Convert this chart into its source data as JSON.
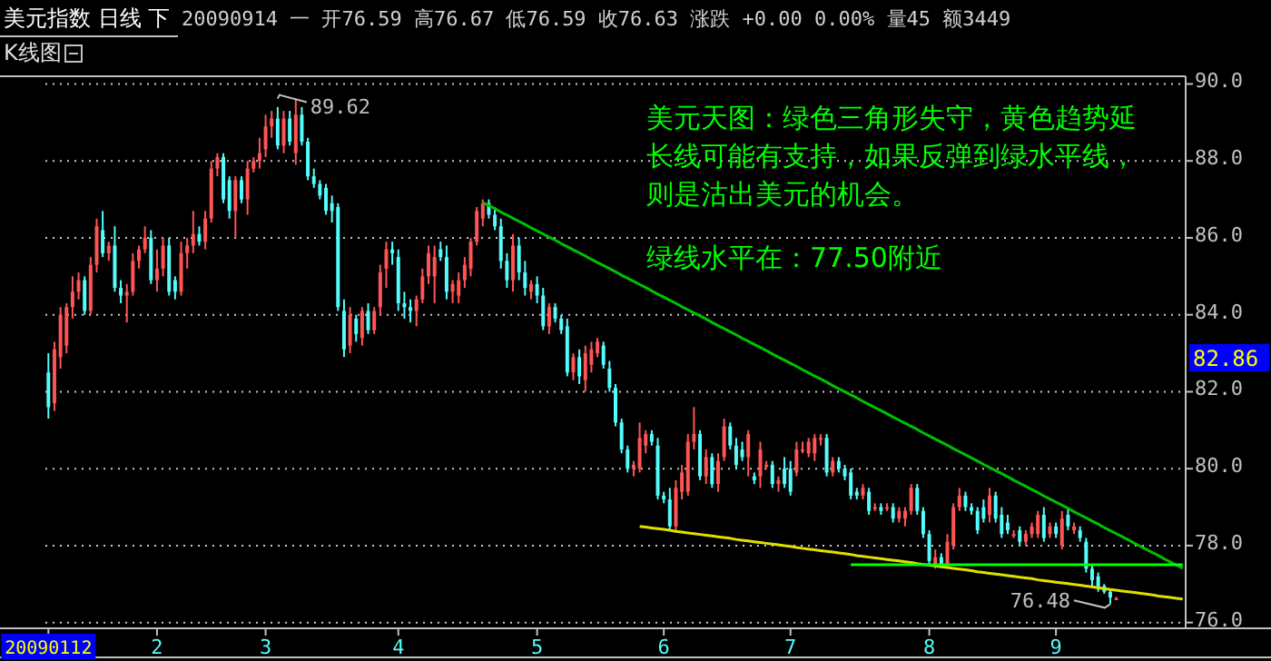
{
  "chart_data": {
    "type": "candlestick",
    "title": "美元指数 日线 下",
    "subtitle": "20090914 一 开76.59 高76.67 低76.59 收76.63 涨跌 +0.00 0.00% 量45 额3449",
    "categories": [
      "20090112",
      null,
      null,
      null,
      null,
      null,
      null,
      null,
      null,
      null,
      null,
      null,
      null,
      null,
      null,
      null,
      null,
      null,
      "2",
      null,
      null,
      null,
      null,
      null,
      null,
      null,
      null,
      null,
      null,
      null,
      null,
      null,
      null,
      null,
      null,
      null,
      "3",
      null,
      null,
      null,
      null,
      null,
      null,
      null,
      null,
      null,
      null,
      null,
      null,
      null,
      null,
      null,
      null,
      null,
      null,
      null,
      null,
      null,
      "4",
      null,
      null,
      null,
      null,
      null,
      null,
      null,
      null,
      null,
      null,
      null,
      null,
      null,
      null,
      null,
      null,
      null,
      null,
      null,
      null,
      null,
      null,
      "5",
      null,
      null,
      null,
      null,
      null,
      null,
      null,
      null,
      null,
      null,
      null,
      null,
      null,
      null,
      null,
      null,
      null,
      null,
      null,
      null,
      "6",
      null,
      null,
      null,
      null,
      null,
      null,
      null,
      null,
      null,
      null,
      null,
      null,
      null,
      null,
      null,
      null,
      null,
      null,
      null,
      null,
      "7",
      null,
      null,
      null,
      null,
      null,
      null,
      null,
      null,
      null,
      null,
      null,
      null,
      null,
      null,
      null,
      null,
      null,
      null,
      null,
      null,
      null,
      null,
      "8",
      null,
      null,
      null,
      null,
      null,
      null,
      null,
      null,
      null,
      null,
      null,
      null,
      null,
      null,
      null,
      null,
      null,
      null,
      null,
      null,
      "9",
      null,
      null,
      null,
      null,
      null,
      null,
      null,
      null,
      null,
      null,
      null,
      null,
      null,
      null,
      null,
      null,
      null,
      null,
      null,
      null,
      null
    ],
    "ohlc": [
      [
        82.5,
        83.0,
        81.3,
        81.6
      ],
      [
        81.7,
        83.3,
        81.5,
        83.1
      ],
      [
        82.9,
        84.2,
        82.6,
        84.0
      ],
      [
        83.2,
        84.3,
        83.0,
        84.2
      ],
      [
        84.2,
        85.0,
        83.9,
        84.6
      ],
      [
        84.6,
        85.1,
        84.4,
        84.9
      ],
      [
        84.9,
        85.0,
        84.0,
        84.1
      ],
      [
        84.1,
        85.5,
        84.0,
        85.3
      ],
      [
        85.3,
        86.5,
        85.1,
        86.3
      ],
      [
        86.2,
        86.7,
        85.5,
        85.6
      ],
      [
        85.6,
        85.9,
        85.4,
        85.8
      ],
      [
        85.8,
        86.3,
        84.6,
        84.7
      ],
      [
        84.7,
        84.9,
        84.3,
        84.5
      ],
      [
        84.5,
        84.8,
        83.8,
        84.6
      ],
      [
        84.6,
        85.6,
        84.5,
        85.4
      ],
      [
        85.4,
        85.8,
        85.2,
        85.7
      ],
      [
        85.7,
        86.3,
        85.6,
        86.0
      ],
      [
        86.0,
        86.2,
        84.8,
        84.9
      ],
      [
        84.9,
        85.7,
        84.6,
        85.2
      ],
      [
        85.2,
        86.0,
        85.0,
        85.8
      ],
      [
        85.8,
        86.0,
        84.5,
        84.6
      ],
      [
        84.9,
        85.0,
        84.4,
        84.6
      ],
      [
        84.6,
        85.9,
        84.5,
        85.6
      ],
      [
        85.6,
        86.0,
        85.2,
        85.8
      ],
      [
        85.8,
        86.7,
        85.6,
        86.1
      ],
      [
        86.1,
        86.3,
        85.8,
        85.9
      ],
      [
        85.9,
        86.7,
        85.7,
        86.5
      ],
      [
        86.5,
        88.0,
        86.4,
        87.8
      ],
      [
        87.8,
        88.2,
        87.6,
        88.1
      ],
      [
        88.1,
        88.2,
        86.9,
        87.0
      ],
      [
        87.5,
        87.6,
        86.5,
        86.7
      ],
      [
        86.7,
        87.6,
        86.0,
        87.5
      ],
      [
        87.5,
        87.6,
        86.9,
        87.0
      ],
      [
        87.0,
        88.0,
        86.6,
        87.8
      ],
      [
        87.8,
        88.1,
        87.7,
        88.0
      ],
      [
        88.0,
        88.6,
        87.8,
        88.2
      ],
      [
        88.3,
        89.2,
        88.1,
        88.9
      ],
      [
        88.9,
        89.3,
        88.6,
        89.1
      ],
      [
        89.1,
        89.4,
        88.3,
        88.4
      ],
      [
        88.4,
        89.3,
        88.2,
        89.1
      ],
      [
        89.1,
        89.3,
        88.4,
        88.5
      ],
      [
        88.2,
        89.62,
        87.9,
        89.2
      ],
      [
        89.2,
        89.4,
        88.4,
        88.5
      ],
      [
        88.5,
        88.6,
        87.5,
        87.6
      ],
      [
        87.6,
        87.8,
        87.3,
        87.4
      ],
      [
        87.4,
        87.5,
        87.0,
        87.1
      ],
      [
        87.3,
        87.4,
        86.6,
        86.7
      ],
      [
        86.9,
        87.1,
        86.4,
        86.7
      ],
      [
        86.8,
        86.9,
        84.1,
        84.2
      ],
      [
        84.1,
        84.4,
        82.9,
        83.1
      ],
      [
        83.2,
        84.2,
        83.0,
        84.0
      ],
      [
        83.9,
        84.0,
        83.3,
        83.5
      ],
      [
        83.4,
        84.2,
        83.2,
        84.1
      ],
      [
        84.1,
        84.3,
        83.5,
        83.6
      ],
      [
        83.6,
        84.2,
        83.5,
        84.1
      ],
      [
        84.2,
        85.3,
        84.0,
        85.1
      ],
      [
        85.2,
        85.9,
        84.7,
        85.7
      ],
      [
        85.7,
        85.9,
        85.3,
        85.6
      ],
      [
        85.5,
        85.7,
        84.1,
        84.3
      ],
      [
        84.3,
        84.6,
        83.9,
        84.2
      ],
      [
        84.2,
        84.4,
        83.8,
        84.1
      ],
      [
        84.1,
        84.5,
        83.7,
        84.4
      ],
      [
        84.4,
        85.2,
        84.3,
        85.0
      ],
      [
        85.0,
        85.8,
        84.8,
        85.6
      ],
      [
        85.0,
        85.8,
        84.3,
        85.5
      ],
      [
        85.7,
        85.9,
        85.4,
        85.5
      ],
      [
        85.5,
        85.8,
        84.4,
        84.6
      ],
      [
        84.6,
        84.9,
        84.3,
        84.8
      ],
      [
        84.5,
        85.1,
        84.3,
        84.9
      ],
      [
        84.9,
        85.5,
        84.7,
        85.3
      ],
      [
        85.2,
        86.0,
        85.0,
        85.9
      ],
      [
        85.9,
        86.8,
        85.8,
        86.7
      ],
      [
        86.5,
        87.0,
        86.3,
        86.9
      ],
      [
        86.9,
        87.0,
        86.5,
        86.6
      ],
      [
        86.6,
        86.8,
        86.2,
        86.3
      ],
      [
        86.3,
        86.5,
        85.2,
        85.4
      ],
      [
        85.4,
        85.6,
        84.7,
        84.9
      ],
      [
        84.9,
        86.1,
        84.6,
        85.8
      ],
      [
        85.8,
        86.0,
        84.9,
        85.1
      ],
      [
        85.1,
        85.4,
        84.5,
        84.7
      ],
      [
        84.6,
        84.9,
        84.4,
        84.8
      ],
      [
        84.8,
        85.0,
        84.3,
        84.5
      ],
      [
        84.5,
        84.7,
        83.6,
        83.7
      ],
      [
        83.7,
        84.3,
        83.5,
        84.2
      ],
      [
        84.2,
        84.3,
        83.8,
        83.9
      ],
      [
        83.9,
        84.0,
        83.5,
        83.6
      ],
      [
        83.7,
        83.9,
        82.4,
        82.5
      ],
      [
        82.5,
        83.0,
        82.3,
        82.9
      ],
      [
        82.9,
        83.1,
        82.2,
        82.4
      ],
      [
        82.3,
        83.2,
        82.0,
        83.0
      ],
      [
        82.7,
        83.3,
        82.5,
        83.1
      ],
      [
        83.0,
        83.4,
        82.9,
        83.3
      ],
      [
        83.2,
        83.3,
        82.6,
        82.7
      ],
      [
        82.6,
        82.8,
        82.0,
        82.1
      ],
      [
        82.1,
        82.2,
        81.1,
        81.2
      ],
      [
        81.2,
        81.3,
        80.4,
        80.5
      ],
      [
        80.5,
        80.6,
        79.9,
        80.0
      ],
      [
        80.0,
        80.2,
        79.8,
        80.1
      ],
      [
        80.0,
        81.2,
        79.9,
        80.8
      ],
      [
        80.6,
        81.0,
        80.4,
        80.9
      ],
      [
        80.9,
        81.0,
        80.6,
        80.7
      ],
      [
        80.6,
        80.8,
        79.2,
        79.3
      ],
      [
        79.3,
        79.4,
        79.1,
        79.2
      ],
      [
        79.2,
        79.5,
        78.4,
        78.5
      ],
      [
        78.5,
        79.7,
        78.4,
        79.5
      ],
      [
        79.4,
        80.1,
        79.2,
        79.9
      ],
      [
        79.4,
        80.9,
        79.3,
        80.7
      ],
      [
        80.7,
        81.6,
        80.5,
        80.9
      ],
      [
        80.9,
        81.0,
        79.7,
        79.8
      ],
      [
        79.8,
        80.5,
        79.6,
        80.3
      ],
      [
        80.3,
        80.4,
        79.5,
        79.6
      ],
      [
        79.6,
        80.4,
        79.4,
        80.2
      ],
      [
        80.3,
        81.3,
        80.2,
        81.1
      ],
      [
        81.1,
        81.2,
        80.5,
        80.6
      ],
      [
        80.6,
        80.8,
        80.0,
        80.1
      ],
      [
        80.5,
        80.7,
        80.2,
        80.3
      ],
      [
        80.3,
        81.0,
        79.8,
        80.9
      ],
      [
        79.8,
        79.9,
        79.6,
        79.7
      ],
      [
        79.8,
        80.7,
        79.5,
        80.5
      ],
      [
        80.1,
        80.2,
        80.0,
        80.1
      ],
      [
        80.1,
        80.2,
        79.5,
        79.6
      ],
      [
        79.6,
        79.8,
        79.4,
        79.7
      ],
      [
        80.0,
        80.3,
        79.5,
        79.6
      ],
      [
        80.0,
        80.2,
        79.3,
        79.4
      ],
      [
        79.9,
        80.7,
        79.8,
        80.5
      ],
      [
        80.5,
        80.7,
        80.4,
        80.5
      ],
      [
        80.4,
        80.8,
        80.3,
        80.7
      ],
      [
        80.4,
        80.9,
        80.2,
        80.8
      ],
      [
        80.8,
        80.9,
        80.6,
        80.8
      ],
      [
        80.8,
        80.9,
        79.8,
        79.9
      ],
      [
        79.9,
        80.3,
        79.8,
        80.2
      ],
      [
        80.2,
        80.3,
        79.9,
        80.0
      ],
      [
        80.0,
        80.1,
        79.7,
        79.8
      ],
      [
        79.9,
        80.0,
        79.2,
        79.3
      ],
      [
        79.4,
        79.5,
        79.2,
        79.3
      ],
      [
        79.3,
        79.6,
        79.2,
        79.5
      ],
      [
        79.4,
        79.5,
        78.8,
        78.9
      ],
      [
        79.0,
        79.1,
        78.9,
        79.0
      ],
      [
        79.0,
        79.1,
        78.8,
        78.9
      ],
      [
        79.0,
        79.1,
        78.9,
        79.0
      ],
      [
        79.0,
        79.1,
        78.6,
        78.7
      ],
      [
        78.7,
        79.0,
        78.6,
        78.9
      ],
      [
        78.7,
        79.0,
        78.5,
        78.9
      ],
      [
        78.9,
        79.6,
        78.8,
        79.5
      ],
      [
        79.5,
        79.6,
        78.8,
        78.9
      ],
      [
        78.9,
        79.0,
        78.2,
        78.3
      ],
      [
        78.3,
        78.4,
        77.5,
        77.6
      ],
      [
        77.5,
        77.9,
        77.4,
        77.7
      ],
      [
        77.7,
        77.8,
        77.5,
        77.5
      ],
      [
        77.5,
        78.3,
        77.4,
        78.1
      ],
      [
        78.0,
        79.1,
        77.9,
        79.0
      ],
      [
        79.0,
        79.5,
        78.9,
        79.3
      ],
      [
        79.3,
        79.4,
        78.9,
        79.0
      ],
      [
        79.0,
        79.1,
        78.8,
        78.9
      ],
      [
        78.9,
        79.0,
        78.3,
        78.4
      ],
      [
        79.0,
        79.2,
        78.6,
        78.7
      ],
      [
        78.8,
        79.5,
        78.6,
        79.3
      ],
      [
        79.3,
        79.4,
        78.6,
        78.7
      ],
      [
        78.8,
        79.0,
        78.2,
        78.3
      ],
      [
        78.6,
        78.8,
        78.3,
        78.4
      ],
      [
        78.3,
        78.4,
        78.2,
        78.3
      ],
      [
        78.4,
        78.5,
        78.0,
        78.1
      ],
      [
        78.1,
        78.4,
        78.0,
        78.3
      ],
      [
        78.3,
        78.6,
        78.2,
        78.5
      ],
      [
        78.3,
        78.9,
        78.2,
        78.8
      ],
      [
        78.8,
        79.0,
        78.1,
        78.2
      ],
      [
        78.3,
        78.6,
        78.2,
        78.5
      ],
      [
        78.5,
        78.6,
        78.2,
        78.3
      ],
      [
        78.0,
        78.9,
        77.9,
        78.7
      ],
      [
        78.8,
        79.0,
        78.4,
        78.5
      ],
      [
        78.4,
        78.6,
        78.3,
        78.5
      ],
      [
        78.4,
        78.5,
        78.1,
        78.2
      ],
      [
        78.1,
        78.2,
        77.3,
        77.4
      ],
      [
        77.4,
        77.5,
        76.9,
        77.1
      ],
      [
        77.2,
        77.3,
        76.8,
        76.9
      ],
      [
        76.95,
        77.0,
        76.75,
        76.8
      ],
      [
        76.8,
        76.85,
        76.48,
        76.65
      ],
      [
        76.59,
        76.67,
        76.59,
        76.63
      ],
      null,
      null,
      null,
      null,
      null,
      null,
      null,
      null,
      null,
      null,
      null
    ],
    "series": [
      {
        "type": "line",
        "color": "#00c000",
        "values": [
          null,
          null,
          null,
          null,
          null,
          null,
          null,
          null,
          null,
          null,
          null,
          null,
          null,
          null,
          null,
          null,
          null,
          null,
          null,
          null,
          null,
          null,
          null,
          null,
          null,
          null,
          null,
          null,
          null,
          null,
          null,
          null,
          null,
          null,
          null,
          null,
          null,
          null,
          null,
          null,
          null,
          null,
          null,
          null,
          null,
          null,
          null,
          null,
          null,
          null,
          null,
          null,
          null,
          null,
          null,
          null,
          null,
          null,
          null,
          null,
          null,
          null,
          null,
          null,
          null,
          null,
          null,
          null,
          null,
          null,
          null,
          null,
          86.92,
          86.84,
          86.76,
          86.67,
          86.59,
          86.51,
          86.43,
          86.35,
          86.26,
          86.18,
          86.1,
          86.02,
          85.94,
          85.85,
          85.77,
          85.69,
          85.61,
          85.53,
          85.44,
          85.36,
          85.28,
          85.2,
          85.12,
          85.03,
          84.95,
          84.87,
          84.79,
          84.71,
          84.62,
          84.54,
          84.46,
          84.38,
          84.3,
          84.21,
          84.13,
          84.05,
          83.97,
          83.89,
          83.8,
          83.72,
          83.64,
          83.56,
          83.48,
          83.39,
          83.31,
          83.23,
          83.15,
          83.07,
          82.98,
          82.9,
          82.82,
          82.74,
          82.66,
          82.57,
          82.49,
          82.41,
          82.33,
          82.25,
          82.16,
          82.08,
          82.0,
          81.92,
          81.84,
          81.75,
          81.67,
          81.59,
          81.51,
          81.43,
          81.34,
          81.26,
          81.18,
          81.1,
          81.02,
          80.93,
          80.85,
          80.77,
          80.69,
          80.61,
          80.52,
          80.44,
          80.36,
          80.28,
          80.2,
          80.11,
          80.03,
          79.95,
          79.87,
          79.79,
          79.7,
          79.62,
          79.54,
          79.46,
          79.38,
          79.29,
          79.21,
          79.13,
          79.05,
          78.97,
          78.88,
          78.8,
          78.72,
          78.64,
          78.56,
          78.47,
          78.39,
          78.31,
          78.23,
          78.15,
          78.06,
          77.98,
          77.9,
          77.82,
          77.74,
          77.65,
          77.57,
          77.49,
          77.41
        ]
      },
      {
        "type": "line",
        "color": "#e0e000",
        "values": [
          null,
          null,
          null,
          null,
          null,
          null,
          null,
          null,
          null,
          null,
          null,
          null,
          null,
          null,
          null,
          null,
          null,
          null,
          null,
          null,
          null,
          null,
          null,
          null,
          null,
          null,
          null,
          null,
          null,
          null,
          null,
          null,
          null,
          null,
          null,
          null,
          null,
          null,
          null,
          null,
          null,
          null,
          null,
          null,
          null,
          null,
          null,
          null,
          null,
          null,
          null,
          null,
          null,
          null,
          null,
          null,
          null,
          null,
          null,
          null,
          null,
          null,
          null,
          null,
          null,
          null,
          null,
          null,
          null,
          null,
          null,
          null,
          null,
          null,
          null,
          null,
          null,
          null,
          null,
          null,
          null,
          null,
          null,
          null,
          null,
          null,
          null,
          null,
          null,
          null,
          null,
          null,
          null,
          null,
          null,
          null,
          null,
          null,
          78.5,
          78.48,
          78.46,
          78.44,
          78.42,
          78.4,
          78.37,
          78.35,
          78.33,
          78.31,
          78.29,
          78.27,
          78.25,
          78.23,
          78.21,
          78.19,
          78.16,
          78.14,
          78.12,
          78.1,
          78.08,
          78.06,
          78.04,
          78.02,
          78.0,
          77.98,
          77.95,
          77.93,
          77.91,
          77.89,
          77.87,
          77.85,
          77.83,
          77.81,
          77.79,
          77.77,
          77.74,
          77.72,
          77.7,
          77.68,
          77.66,
          77.64,
          77.62,
          77.6,
          77.58,
          77.56,
          77.53,
          77.51,
          77.49,
          77.47,
          77.45,
          77.43,
          77.41,
          77.39,
          77.37,
          77.35,
          77.32,
          77.3,
          77.28,
          77.26,
          77.24,
          77.22,
          77.2,
          77.18,
          77.16,
          77.14,
          77.11,
          77.09,
          77.07,
          77.05,
          77.03,
          77.01,
          76.99,
          76.97,
          76.95,
          76.93,
          76.9,
          76.88,
          76.86,
          76.84,
          76.82,
          76.8,
          76.78,
          76.76,
          76.74,
          76.72,
          76.69,
          76.67,
          76.65,
          76.63,
          76.61
        ]
      },
      {
        "type": "line",
        "color": "#00ff00",
        "values": [
          null,
          null,
          null,
          null,
          null,
          null,
          null,
          null,
          null,
          null,
          null,
          null,
          null,
          null,
          null,
          null,
          null,
          null,
          null,
          null,
          null,
          null,
          null,
          null,
          null,
          null,
          null,
          null,
          null,
          null,
          null,
          null,
          null,
          null,
          null,
          null,
          null,
          null,
          null,
          null,
          null,
          null,
          null,
          null,
          null,
          null,
          null,
          null,
          null,
          null,
          null,
          null,
          null,
          null,
          null,
          null,
          null,
          null,
          null,
          null,
          null,
          null,
          null,
          null,
          null,
          null,
          null,
          null,
          null,
          null,
          null,
          null,
          null,
          null,
          null,
          null,
          null,
          null,
          null,
          null,
          null,
          null,
          null,
          null,
          null,
          null,
          null,
          null,
          null,
          null,
          null,
          null,
          null,
          null,
          null,
          null,
          null,
          null,
          null,
          null,
          null,
          null,
          null,
          null,
          null,
          null,
          null,
          null,
          null,
          null,
          null,
          null,
          null,
          null,
          null,
          null,
          null,
          null,
          null,
          null,
          null,
          null,
          null,
          null,
          null,
          null,
          null,
          null,
          null,
          null,
          null,
          null,
          null,
          77.5,
          77.5,
          77.5,
          77.5,
          77.5,
          77.5,
          77.5,
          77.5,
          77.5,
          77.5,
          77.5,
          77.5,
          77.5,
          77.5,
          77.5,
          77.5,
          77.5,
          77.5,
          77.5,
          77.5,
          77.5,
          77.5,
          77.5,
          77.5,
          77.5,
          77.5,
          77.5,
          77.5,
          77.5,
          77.5,
          77.5,
          77.5,
          77.5,
          77.5,
          77.5,
          77.5,
          77.5,
          77.5,
          77.5,
          77.5,
          77.5,
          77.5,
          77.5,
          77.5,
          77.5,
          77.5,
          77.5,
          77.5,
          77.5,
          77.5,
          77.5,
          77.5,
          77.5,
          77.5,
          77.5,
          77.5
        ]
      }
    ],
    "ylim": [
      75.85,
      90.2
    ],
    "yticks": [
      {
        "value": 76,
        "label": "76.0"
      },
      {
        "value": 78,
        "label": "78.0"
      },
      {
        "value": 80,
        "label": "80.0"
      },
      {
        "value": 82,
        "label": "82.0"
      },
      {
        "value": 84,
        "label": "84.0"
      },
      {
        "value": 86,
        "label": "86.0"
      },
      {
        "value": 88,
        "label": "88.0"
      },
      {
        "value": 90,
        "label": "90.0"
      }
    ],
    "grid": "y",
    "annotations": [
      "K线图",
      "美元天图：绿色三角形失守，黄色趋势延长线可能有支持，如果反弹到绿水平线，则是沽出美元的机会。",
      "绿线水平在：77.50附近",
      "89.62",
      "76.48",
      {
        "text": "82.86",
        "y": 82.86
      }
    ]
  }
}
